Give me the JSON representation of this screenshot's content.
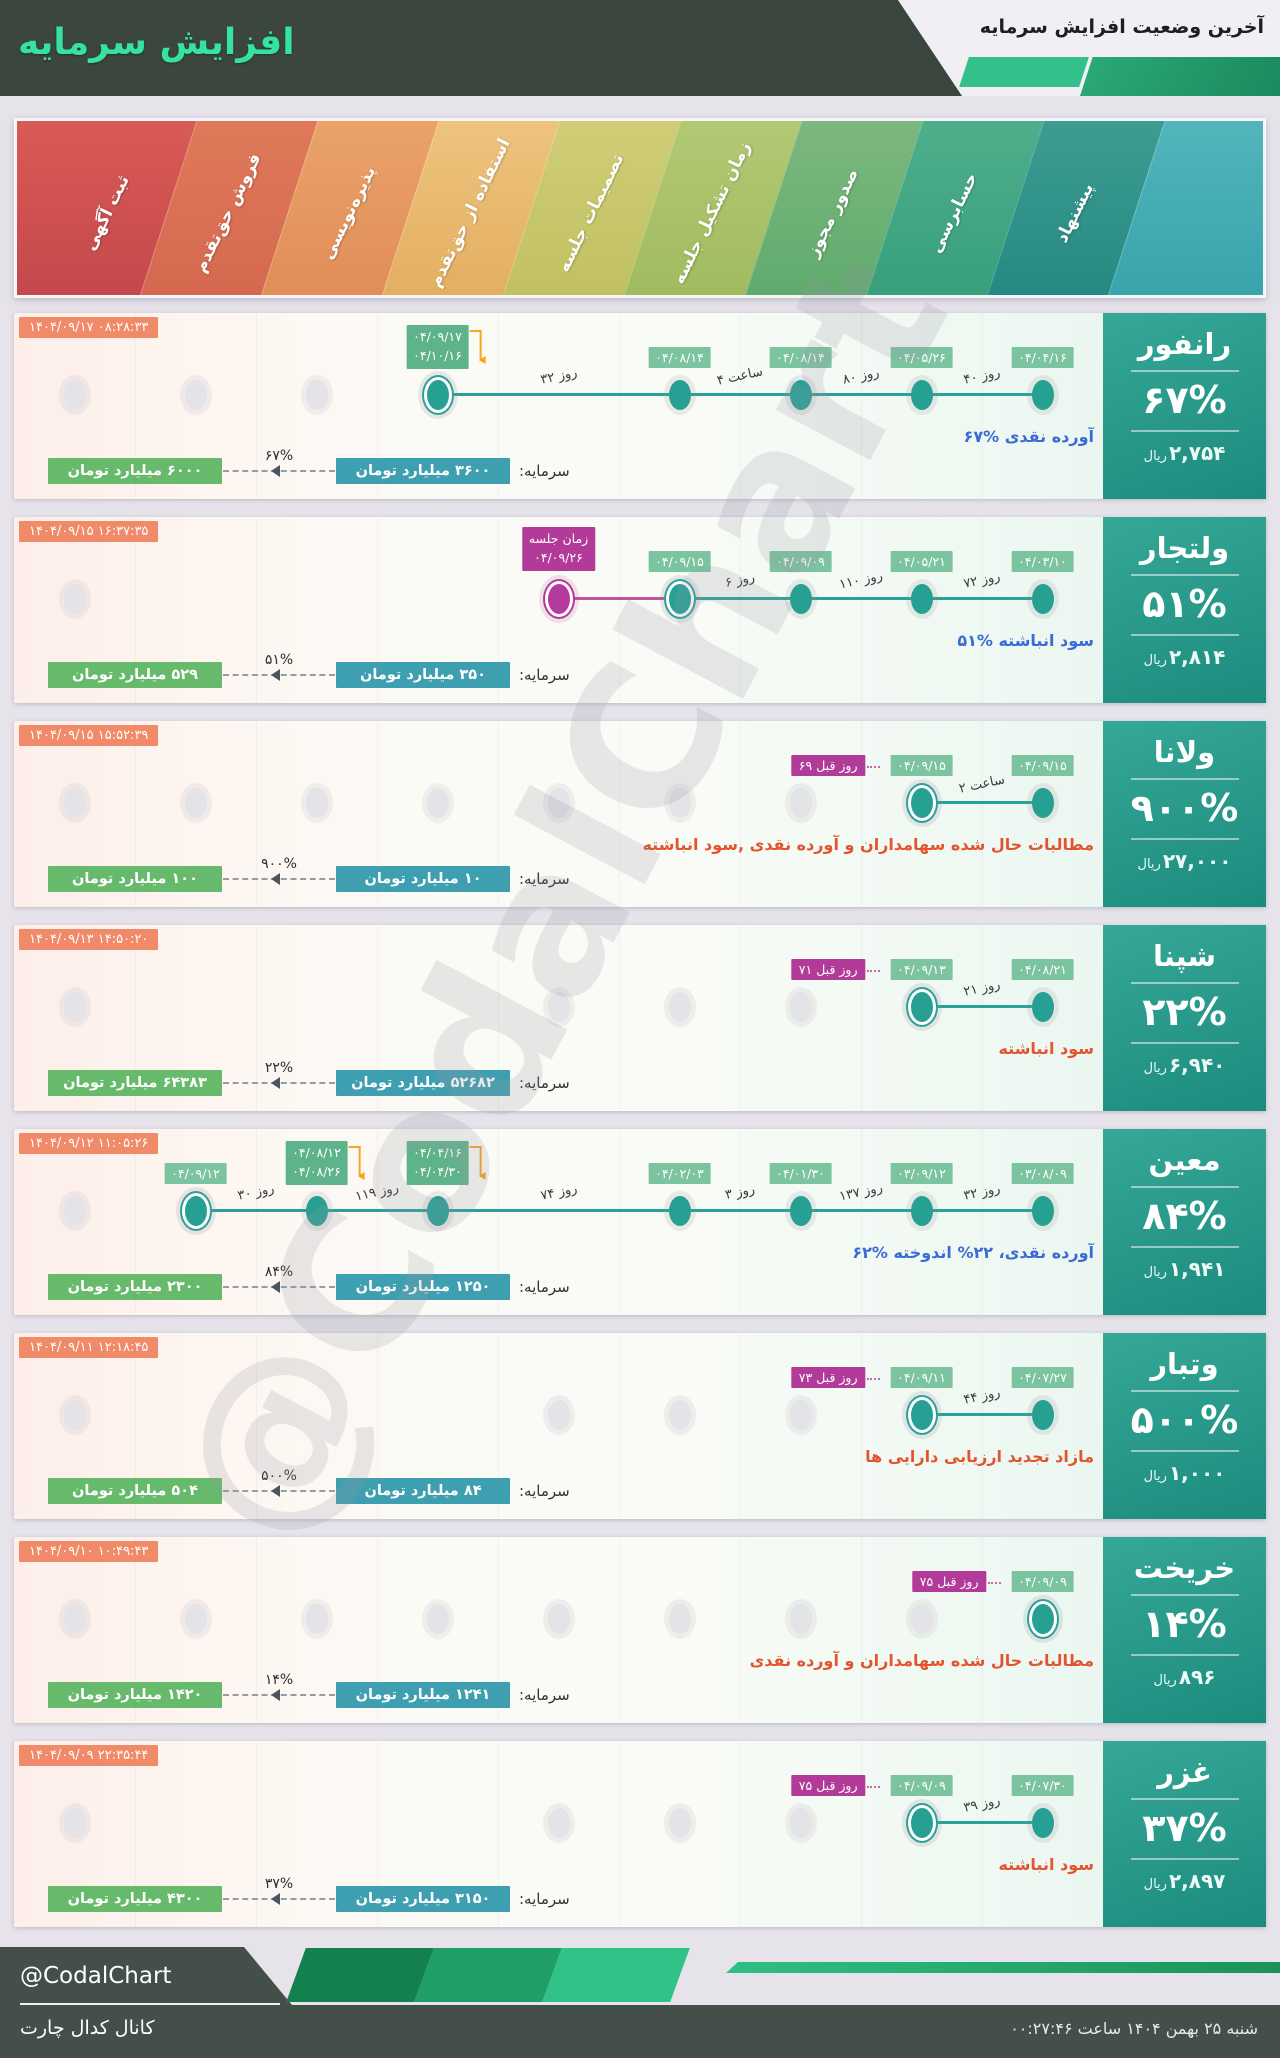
{
  "header": {
    "title": "افزایش سرمایه",
    "subtitle": "آخرین وضعیت افزایش سرمایه"
  },
  "stages": [
    {
      "label": "ثبت آگهی",
      "color_bottom": "#c4474c",
      "color_top": "#d95b55"
    },
    {
      "label": "فروش حق‌تقدم",
      "color_bottom": "#d4684f",
      "color_top": "#e0795a"
    },
    {
      "label": "پذیره‌نویسی",
      "color_bottom": "#e08c58",
      "color_top": "#eaa368"
    },
    {
      "label": "استفاده از حق‌تقدم",
      "color_bottom": "#e3ae60",
      "color_top": "#eec47e"
    },
    {
      "label": "تصمیمات جلسه",
      "color_bottom": "#c0c062",
      "color_top": "#d0cd77"
    },
    {
      "label": "زمان تشکیل جلسه",
      "color_bottom": "#a0bb5f",
      "color_top": "#b3c873"
    },
    {
      "label": "صدور مجوز",
      "color_bottom": "#5faa6d",
      "color_top": "#7db87e"
    },
    {
      "label": "حسابرسی",
      "color_bottom": "#379f7b",
      "color_top": "#4fae8b"
    },
    {
      "label": "پیشنهاد",
      "color_bottom": "#258981",
      "color_top": "#3d9c92"
    },
    {
      "label": "",
      "color_bottom": "#37a3ab",
      "color_top": "#52b5bc"
    }
  ],
  "rows": [
    {
      "name": "رانفور",
      "pct": "۶۷%",
      "price": "۲,۷۵۴",
      "price_unit": "ریال",
      "timestamp": "۱۴۰۴/۰۹/۱۷ ۰۸:۲۸:۳۳",
      "desc": "۶۷% آورده نقدی",
      "desc_color": "blue",
      "capital_label": "سرمایه:",
      "capital_from": "۳۶۰۰ میلیارد تومان",
      "capital_to": "۶۰۰۰ میلیارد تومان",
      "capital_pct": "۶۷%",
      "dots": [
        {
          "col": 0,
          "type": "gray"
        },
        {
          "col": 1,
          "type": "gray"
        },
        {
          "col": 2,
          "type": "gray"
        },
        {
          "col": 3,
          "type": "current",
          "badge": {
            "kind": "pair",
            "lines": [
              "۰۴/۰۹/۱۷",
              "۰۴/۱۰/۱۶"
            ]
          }
        },
        {
          "col": 5,
          "type": "active",
          "badge": {
            "kind": "single",
            "lines": [
              "۰۴/۰۸/۱۴"
            ]
          }
        },
        {
          "col": 6,
          "type": "active",
          "badge": {
            "kind": "single",
            "lines": [
              "۰۴/۰۸/۱۴"
            ]
          }
        },
        {
          "col": 7,
          "type": "active",
          "badge": {
            "kind": "single",
            "lines": [
              "۰۴/۰۵/۲۶"
            ]
          }
        },
        {
          "col": 8,
          "type": "active",
          "badge": {
            "kind": "single",
            "lines": [
              "۰۴/۰۴/۱۶"
            ]
          }
        }
      ],
      "segments": [
        {
          "from": 3,
          "to": 5,
          "label": "۳۲ روز"
        },
        {
          "from": 5,
          "to": 6,
          "label": "۴ ساعت"
        },
        {
          "from": 6,
          "to": 7,
          "label": "۸۰ روز"
        },
        {
          "from": 7,
          "to": 8,
          "label": "۴۰ روز"
        }
      ]
    },
    {
      "name": "ولتجار",
      "pct": "۵۱%",
      "price": "۲,۸۱۴",
      "price_unit": "ریال",
      "timestamp": "۱۴۰۴/۰۹/۱۵ ۱۶:۳۷:۳۵",
      "desc": "۵۱% سود انباشته",
      "desc_color": "blue",
      "capital_label": "سرمایه:",
      "capital_from": "۳۵۰ میلیارد تومان",
      "capital_to": "۵۲۹ میلیارد تومان",
      "capital_pct": "۵۱%",
      "dots": [
        {
          "col": 0,
          "type": "gray"
        },
        {
          "col": 4,
          "type": "magenta",
          "badge": {
            "kind": "mpair",
            "lines": [
              "زمان جلسه",
              "۰۴/۰۹/۲۶"
            ]
          }
        },
        {
          "col": 5,
          "type": "current",
          "badge": {
            "kind": "single",
            "lines": [
              "۰۴/۰۹/۱۵"
            ]
          }
        },
        {
          "col": 6,
          "type": "active",
          "badge": {
            "kind": "single",
            "lines": [
              "۰۴/۰۹/۰۹"
            ]
          }
        },
        {
          "col": 7,
          "type": "active",
          "badge": {
            "kind": "single",
            "lines": [
              "۰۴/۰۵/۲۱"
            ]
          }
        },
        {
          "col": 8,
          "type": "active",
          "badge": {
            "kind": "single",
            "lines": [
              "۰۴/۰۳/۱۰"
            ]
          }
        }
      ],
      "segments": [
        {
          "from": 4,
          "to": 5,
          "label": "",
          "color": "pink"
        },
        {
          "from": 5,
          "to": 6,
          "label": "۶ روز"
        },
        {
          "from": 6,
          "to": 7,
          "label": "۱۱۰ روز"
        },
        {
          "from": 7,
          "to": 8,
          "label": "۷۲ روز"
        }
      ]
    },
    {
      "name": "ولانا",
      "pct": "۹۰۰%",
      "price": "۲۷,۰۰۰",
      "price_unit": "ریال",
      "timestamp": "۱۴۰۴/۰۹/۱۵ ۱۵:۵۲:۳۹",
      "desc": "مطالبات حال شده سهامداران و آورده نقدی ,سود انباشته",
      "desc_color": "red",
      "capital_label": "سرمایه:",
      "capital_from": "۱۰ میلیارد تومان",
      "capital_to": "۱۰۰ میلیارد تومان",
      "capital_pct": "۹۰۰%",
      "dots": [
        {
          "col": 0,
          "type": "gray"
        },
        {
          "col": 1,
          "type": "gray"
        },
        {
          "col": 2,
          "type": "gray"
        },
        {
          "col": 3,
          "type": "gray"
        },
        {
          "col": 4,
          "type": "gray"
        },
        {
          "col": 5,
          "type": "gray"
        },
        {
          "col": 6,
          "type": "gray"
        },
        {
          "col": 7,
          "type": "current",
          "badge": {
            "kind": "single",
            "lines": [
              "۰۴/۰۹/۱۵"
            ]
          },
          "prior": "۶۹ روز قبل"
        },
        {
          "col": 8,
          "type": "active",
          "badge": {
            "kind": "single",
            "lines": [
              "۰۴/۰۹/۱۵"
            ]
          }
        }
      ],
      "segments": [
        {
          "from": 7,
          "to": 8,
          "label": "۲ ساعت"
        }
      ]
    },
    {
      "name": "شپنا",
      "pct": "۲۲%",
      "price": "۶,۹۴۰",
      "price_unit": "ریال",
      "timestamp": "۱۴۰۴/۰۹/۱۳ ۱۴:۵۰:۲۰",
      "desc": "سود انباشته",
      "desc_color": "red",
      "capital_label": "سرمایه:",
      "capital_from": "۵۲۶۸۲ میلیارد تومان",
      "capital_to": "۶۴۳۸۳ میلیارد تومان",
      "capital_pct": "۲۲%",
      "dots": [
        {
          "col": 0,
          "type": "gray"
        },
        {
          "col": 4,
          "type": "gray"
        },
        {
          "col": 5,
          "type": "gray"
        },
        {
          "col": 6,
          "type": "gray"
        },
        {
          "col": 7,
          "type": "current",
          "badge": {
            "kind": "single",
            "lines": [
              "۰۴/۰۹/۱۳"
            ]
          },
          "prior": "۷۱ روز قبل"
        },
        {
          "col": 8,
          "type": "active",
          "badge": {
            "kind": "single",
            "lines": [
              "۰۴/۰۸/۲۱"
            ]
          }
        }
      ],
      "segments": [
        {
          "from": 7,
          "to": 8,
          "label": "۲۱ روز"
        }
      ]
    },
    {
      "name": "معین",
      "pct": "۸۴%",
      "price": "۱,۹۴۱",
      "price_unit": "ریال",
      "timestamp": "۱۴۰۴/۰۹/۱۲ ۱۱:۰۵:۲۶",
      "desc": "۶۲% آورده نقدی، ۲۲% اندوخته",
      "desc_color": "blue",
      "capital_label": "سرمایه:",
      "capital_from": "۱۲۵۰ میلیارد تومان",
      "capital_to": "۲۳۰۰ میلیارد تومان",
      "capital_pct": "۸۴%",
      "dots": [
        {
          "col": 0,
          "type": "gray"
        },
        {
          "col": 1,
          "type": "current",
          "badge": {
            "kind": "single",
            "lines": [
              "۰۴/۰۹/۱۲"
            ]
          }
        },
        {
          "col": 2,
          "type": "active",
          "badge": {
            "kind": "pair",
            "lines": [
              "۰۴/۰۸/۱۲",
              "۰۴/۰۸/۲۶"
            ]
          }
        },
        {
          "col": 3,
          "type": "active",
          "badge": {
            "kind": "pair",
            "lines": [
              "۰۴/۰۴/۱۶",
              "۰۴/۰۴/۳۰"
            ]
          }
        },
        {
          "col": 5,
          "type": "active",
          "badge": {
            "kind": "single",
            "lines": [
              "۰۴/۰۲/۰۳"
            ]
          }
        },
        {
          "col": 6,
          "type": "active",
          "badge": {
            "kind": "single",
            "lines": [
              "۰۴/۰۱/۳۰"
            ]
          }
        },
        {
          "col": 7,
          "type": "active",
          "badge": {
            "kind": "single",
            "lines": [
              "۰۳/۰۹/۱۲"
            ]
          }
        },
        {
          "col": 8,
          "type": "active",
          "badge": {
            "kind": "single",
            "lines": [
              "۰۳/۰۸/۰۹"
            ]
          }
        }
      ],
      "segments": [
        {
          "from": 1,
          "to": 2,
          "label": "۳۰ روز"
        },
        {
          "from": 2,
          "to": 3,
          "label": "۱۱۹ روز"
        },
        {
          "from": 3,
          "to": 5,
          "label": "۷۴ روز"
        },
        {
          "from": 5,
          "to": 6,
          "label": "۳ روز"
        },
        {
          "from": 6,
          "to": 7,
          "label": "۱۳۷ روز"
        },
        {
          "from": 7,
          "to": 8,
          "label": "۳۲ روز"
        }
      ]
    },
    {
      "name": "وتبار",
      "pct": "۵۰۰%",
      "price": "۱,۰۰۰",
      "price_unit": "ریال",
      "timestamp": "۱۴۰۴/۰۹/۱۱ ۱۲:۱۸:۴۵",
      "desc": "مازاد تجدید ارزیابی دارایی ها",
      "desc_color": "red",
      "capital_label": "سرمایه:",
      "capital_from": "۸۴ میلیارد تومان",
      "capital_to": "۵۰۴ میلیارد تومان",
      "capital_pct": "۵۰۰%",
      "dots": [
        {
          "col": 0,
          "type": "gray"
        },
        {
          "col": 4,
          "type": "gray"
        },
        {
          "col": 5,
          "type": "gray"
        },
        {
          "col": 6,
          "type": "gray"
        },
        {
          "col": 7,
          "type": "current",
          "badge": {
            "kind": "single",
            "lines": [
              "۰۴/۰۹/۱۱"
            ]
          },
          "prior": "۷۳ روز قبل"
        },
        {
          "col": 8,
          "type": "active",
          "badge": {
            "kind": "single",
            "lines": [
              "۰۴/۰۷/۲۷"
            ]
          }
        }
      ],
      "segments": [
        {
          "from": 7,
          "to": 8,
          "label": "۴۴ روز"
        }
      ]
    },
    {
      "name": "خریخت",
      "pct": "۱۴%",
      "price": "۸۹۶",
      "price_unit": "ریال",
      "timestamp": "۱۴۰۴/۰۹/۱۰ ۱۰:۴۹:۴۳",
      "desc": "مطالبات حال شده سهامداران و آورده نقدی",
      "desc_color": "red",
      "capital_label": "سرمایه:",
      "capital_from": "۱۲۴۱ میلیارد تومان",
      "capital_to": "۱۴۲۰ میلیارد تومان",
      "capital_pct": "۱۴%",
      "dots": [
        {
          "col": 0,
          "type": "gray"
        },
        {
          "col": 1,
          "type": "gray"
        },
        {
          "col": 2,
          "type": "gray"
        },
        {
          "col": 3,
          "type": "gray"
        },
        {
          "col": 4,
          "type": "gray"
        },
        {
          "col": 5,
          "type": "gray"
        },
        {
          "col": 6,
          "type": "gray"
        },
        {
          "col": 7,
          "type": "gray"
        },
        {
          "col": 8,
          "type": "current",
          "badge": {
            "kind": "single",
            "lines": [
              "۰۴/۰۹/۰۹"
            ]
          },
          "prior": "۷۵ روز قبل"
        }
      ],
      "segments": []
    },
    {
      "name": "غزر",
      "pct": "۳۷%",
      "price": "۲,۸۹۷",
      "price_unit": "ریال",
      "timestamp": "۱۴۰۴/۰۹/۰۹ ۲۲:۳۵:۴۴",
      "desc": "سود انباشته",
      "desc_color": "red",
      "capital_label": "سرمایه:",
      "capital_from": "۳۱۵۰ میلیارد تومان",
      "capital_to": "۴۳۰۰ میلیارد تومان",
      "capital_pct": "۳۷%",
      "dots": [
        {
          "col": 0,
          "type": "gray"
        },
        {
          "col": 4,
          "type": "gray"
        },
        {
          "col": 5,
          "type": "gray"
        },
        {
          "col": 6,
          "type": "gray"
        },
        {
          "col": 7,
          "type": "current",
          "badge": {
            "kind": "single",
            "lines": [
              "۰۴/۰۹/۰۹"
            ]
          },
          "prior": "۷۵ روز قبل"
        },
        {
          "col": 8,
          "type": "active",
          "badge": {
            "kind": "single",
            "lines": [
              "۰۴/۰۷/۳۰"
            ]
          }
        }
      ],
      "segments": [
        {
          "from": 7,
          "to": 8,
          "label": "۳۹ روز"
        }
      ]
    }
  ],
  "watermark": "@CodalChart",
  "footer": {
    "handle": "@CodalChart",
    "channel": "کانال کدال چارت",
    "datetime": "شنبه ۲۵ بهمن ۱۴۰۴ ساعت ۰۰:۲۷:۴۶"
  },
  "colors": {
    "accent_teal": "#27a094",
    "magenta": "#b23a98",
    "salmon": "#f18a68",
    "badge_green": "#7cc4a0",
    "capital_teal": "#3e9fb0",
    "capital_green": "#67ba6c",
    "desc_blue": "#3a6bd6",
    "desc_red": "#e2552f",
    "header_dark": "#3b463f",
    "title_green": "#35e29e"
  }
}
